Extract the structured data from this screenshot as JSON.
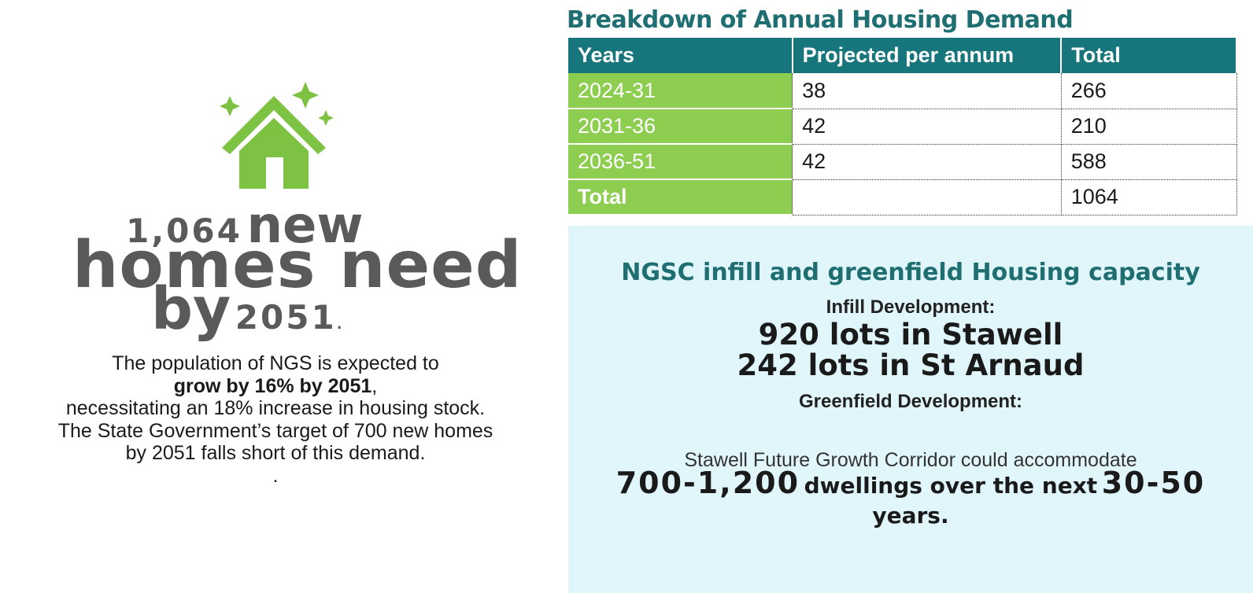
{
  "headline": {
    "line1_number": "1,064",
    "line1_word": "new",
    "line2": "homes need",
    "line3_word": "by",
    "line3_year": "2051",
    "line3_dot": "."
  },
  "paragraph": {
    "line1": "The population of NGS is expected to",
    "line2_bold": "grow by 16% by 2051",
    "line2_comma": ",",
    "line3": "necessitating an 18% increase in housing stock.",
    "line4": "The State Government’s target of 700 new homes",
    "line5": "by 2051 falls short of this demand.",
    "line6": "."
  },
  "table": {
    "title": "Breakdown of Annual Housing Demand",
    "headers": [
      "Years",
      "Projected per annum",
      "Total"
    ],
    "rows": [
      {
        "years": "2024-31",
        "per_annum": "38",
        "total": "266"
      },
      {
        "years": "2031-36",
        "per_annum": "42",
        "total": "210"
      },
      {
        "years": "2036-51",
        "per_annum": "42",
        "total": "588"
      },
      {
        "years": "Total",
        "per_annum": "",
        "total": "1064"
      }
    ]
  },
  "capacity": {
    "title": "NGSC infill and greenfield Housing capacity",
    "infill_label": "Infill Development:",
    "infill_stawell": "920 lots in Stawell",
    "infill_starnaud": "242 lots in St Arnaud",
    "greenfield_label": "Greenfield Development:",
    "corridor_text": "Stawell Future Growth Corridor could accommodate",
    "range_num": "700-1,200",
    "range_mid": "dwellings over the next",
    "range_years_num": "30-50",
    "range_end": "years",
    "range_dot": "."
  },
  "colors": {
    "house_green": "#7dc242",
    "heading_teal": "#1e6e72",
    "table_header": "#17767b",
    "years_green": "#8dcd50",
    "panel_bg": "#e0f6fb"
  }
}
